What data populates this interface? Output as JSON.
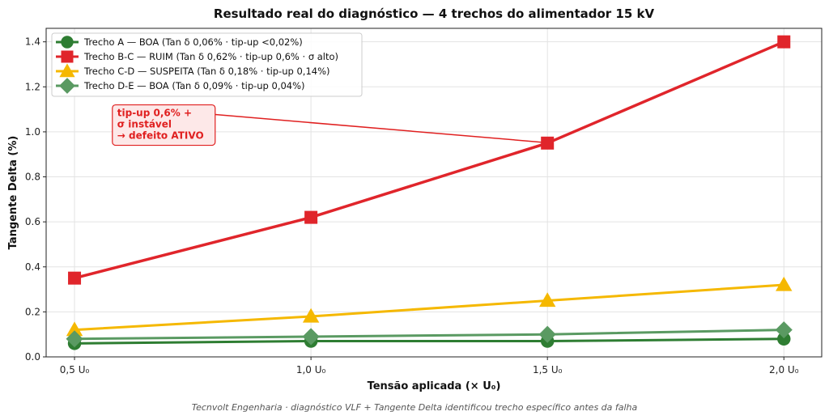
{
  "chart_data": {
    "type": "line",
    "title": "Resultado real do diagnóstico — 4 trechos do alimentador 15 kV",
    "xlabel": "Tensão aplicada (× U₀)",
    "ylabel": "Tangente Delta (%)",
    "footer": "Tecnvolt Engenharia · diagnóstico VLF + Tangente Delta identificou trecho específico antes da falha",
    "categories": [
      "0,5 U₀",
      "1,0 U₀",
      "1,5 U₀",
      "2,0 U₀"
    ],
    "x": [
      0.5,
      1.0,
      1.5,
      2.0
    ],
    "xlim": [
      0.44,
      2.08
    ],
    "ylim": [
      0,
      1.46
    ],
    "yticks": [
      0.0,
      0.2,
      0.4,
      0.6,
      0.8,
      1.0,
      1.2,
      1.4
    ],
    "ytick_labels": [
      "0.0",
      "0.2",
      "0.4",
      "0.6",
      "0.8",
      "1.0",
      "1.2",
      "1.4"
    ],
    "grid": true,
    "legend_position": "top-left",
    "series": [
      {
        "name": "Trecho A — BOA (Tan δ 0,06% · tip-up <0,02%)",
        "values": [
          0.06,
          0.07,
          0.07,
          0.08
        ],
        "color": "#2e7d32",
        "marker": "circle"
      },
      {
        "name": "Trecho B-C — RUIM (Tan δ 0,62% · tip-up 0,6% · σ alto)",
        "values": [
          0.35,
          0.62,
          0.95,
          1.4
        ],
        "color": "#e0252b",
        "marker": "square"
      },
      {
        "name": "Trecho C-D — SUSPEITA (Tan δ 0,18% · tip-up 0,14%)",
        "values": [
          0.12,
          0.18,
          0.25,
          0.32
        ],
        "color": "#f5b800",
        "marker": "triangle"
      },
      {
        "name": "Trecho D-E — BOA (Tan δ 0,09% · tip-up 0,04%)",
        "values": [
          0.08,
          0.09,
          0.1,
          0.12
        ],
        "color": "#5a9a62",
        "marker": "diamond"
      }
    ],
    "annotation": {
      "lines": [
        "tip-up 0,6% +",
        "σ instável",
        "→ defeito ATIVO"
      ],
      "target_x": 1.5,
      "target_y": 0.95,
      "text_x": 0.58,
      "text_y": 1.12,
      "color": "#e02020"
    }
  }
}
